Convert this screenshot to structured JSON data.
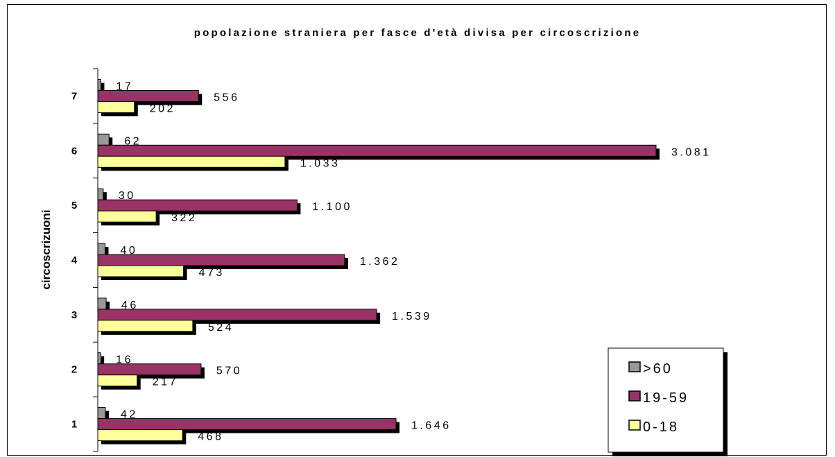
{
  "chart_data": {
    "type": "bar",
    "orientation": "horizontal",
    "title": "popolazione straniera per fasce d'età divisa per circoscrizione",
    "ylabel": "circoscrizuoni",
    "xlabel": "",
    "categories": [
      "1",
      "2",
      "3",
      "4",
      "5",
      "6",
      "7"
    ],
    "series": [
      {
        "name": ">60",
        "color": "#999999",
        "values": [
          42,
          16,
          46,
          40,
          30,
          62,
          17
        ],
        "labels": [
          "42",
          "16",
          "46",
          "40",
          "30",
          "62",
          "17"
        ]
      },
      {
        "name": "19-59",
        "color": "#993366",
        "values": [
          1646,
          570,
          1539,
          1362,
          1100,
          3081,
          556
        ],
        "labels": [
          "1.646",
          "570",
          "1.539",
          "1.362",
          "1.100",
          "3.081",
          "556"
        ]
      },
      {
        "name": "0-18",
        "color": "#ffff99",
        "values": [
          468,
          217,
          524,
          473,
          322,
          1033,
          202
        ],
        "labels": [
          "468",
          "217",
          "524",
          "473",
          "322",
          "1.033",
          "202"
        ]
      }
    ],
    "xlim": [
      0,
      3081
    ],
    "grid": false,
    "legend_position": "bottom-right",
    "shadow": true
  }
}
